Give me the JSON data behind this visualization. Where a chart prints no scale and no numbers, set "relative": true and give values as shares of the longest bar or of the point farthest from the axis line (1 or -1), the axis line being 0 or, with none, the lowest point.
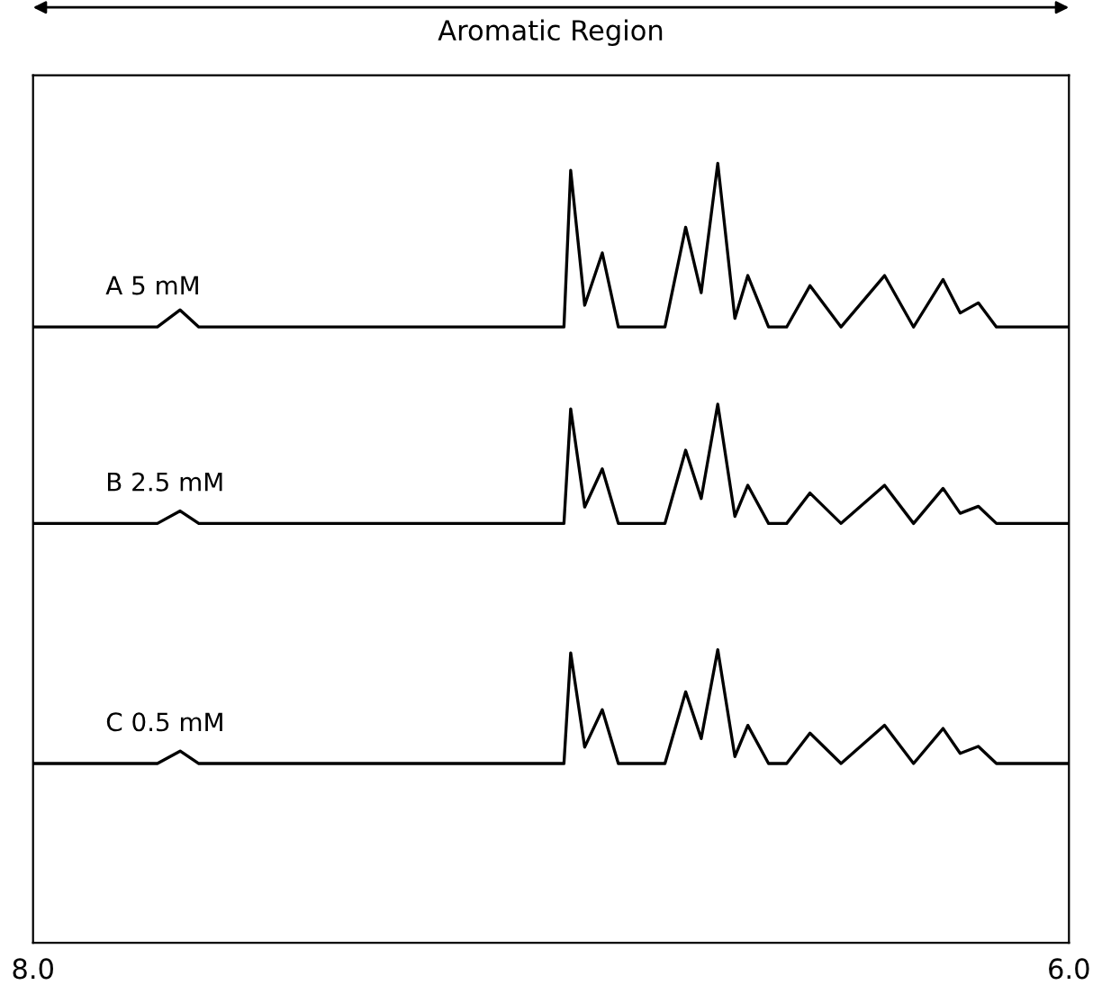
{
  "chart_data": {
    "type": "line",
    "title": "Aromatic Region",
    "relative": true,
    "xlim": [
      8.0,
      6.0
    ],
    "xticks": [
      {
        "value": 8.0,
        "label": "8.0"
      },
      {
        "value": 6.0,
        "label": "6.0"
      }
    ],
    "grid": false,
    "legend": false,
    "marker": "none",
    "line_style": "solid",
    "x": [
      8.0,
      7.76,
      7.716,
      7.68,
      7.2,
      7.0,
      6.975,
      6.962,
      6.935,
      6.901,
      6.87,
      6.78,
      6.74,
      6.71,
      6.678,
      6.645,
      6.62,
      6.58,
      6.545,
      6.5,
      6.44,
      6.356,
      6.3,
      6.243,
      6.21,
      6.175,
      6.14,
      6.0
    ],
    "series": [
      {
        "name": "A 5 mM",
        "color": "#000000",
        "values": [
          0.79,
          0.79,
          0.812,
          0.79,
          0.79,
          0.79,
          0.79,
          0.991,
          0.818,
          0.885,
          0.79,
          0.79,
          0.918,
          0.834,
          1.0,
          0.801,
          0.856,
          0.79,
          0.79,
          0.843,
          0.79,
          0.856,
          0.79,
          0.851,
          0.808,
          0.821,
          0.79,
          0.79
        ]
      },
      {
        "name": "B 2.5 mM",
        "color": "#000000",
        "values": [
          0.538,
          0.538,
          0.554,
          0.538,
          0.538,
          0.538,
          0.538,
          0.685,
          0.559,
          0.608,
          0.538,
          0.538,
          0.632,
          0.57,
          0.691,
          0.547,
          0.587,
          0.538,
          0.538,
          0.577,
          0.538,
          0.587,
          0.538,
          0.583,
          0.551,
          0.56,
          0.538,
          0.538
        ]
      },
      {
        "name": "C 0.5 mM",
        "color": "#000000",
        "values": [
          0.23,
          0.23,
          0.246,
          0.23,
          0.23,
          0.23,
          0.23,
          0.372,
          0.251,
          0.299,
          0.23,
          0.23,
          0.322,
          0.262,
          0.376,
          0.239,
          0.279,
          0.23,
          0.23,
          0.269,
          0.23,
          0.279,
          0.23,
          0.275,
          0.243,
          0.252,
          0.23,
          0.23
        ]
      }
    ]
  }
}
